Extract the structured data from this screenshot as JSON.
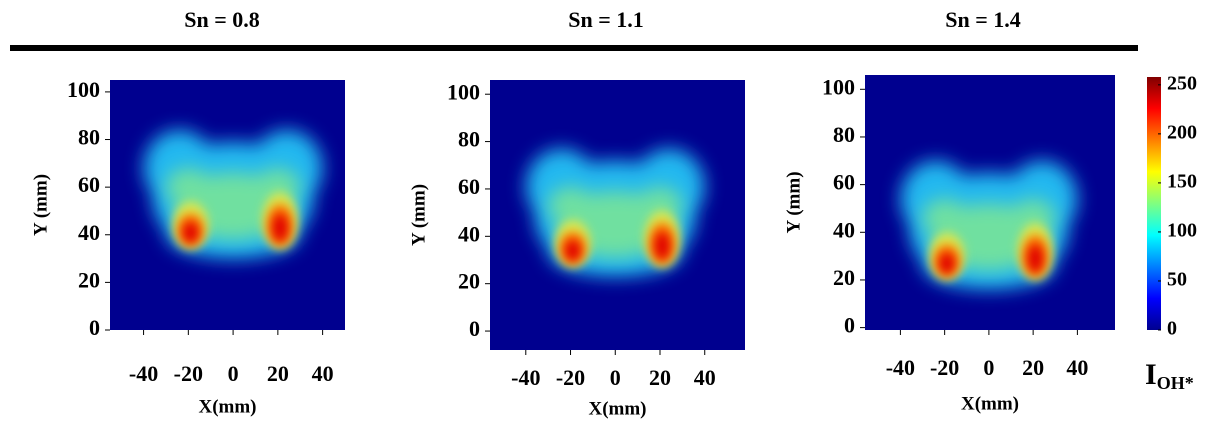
{
  "chart_data": [
    {
      "type": "heatmap",
      "title": "Sn = 0.8",
      "xlabel": "X(mm)",
      "ylabel": "Y (mm)",
      "xlim": [
        -55,
        50
      ],
      "ylim": [
        0,
        105
      ],
      "xticks": [
        -40,
        -20,
        0,
        20,
        40
      ],
      "yticks": [
        0,
        20,
        40,
        60,
        80,
        100
      ]
    },
    {
      "type": "heatmap",
      "title": "Sn = 1.1",
      "xlabel": "X(mm)",
      "ylabel": "Y (mm)",
      "xlim": [
        -56,
        58
      ],
      "ylim": [
        -8,
        106
      ],
      "xticks": [
        -40,
        -20,
        0,
        20,
        40
      ],
      "yticks": [
        0,
        20,
        40,
        60,
        80,
        100
      ]
    },
    {
      "type": "heatmap",
      "title": "Sn = 1.4",
      "xlabel": "X(mm)",
      "ylabel": "Y (mm)",
      "xlim": [
        -56,
        57
      ],
      "ylim": [
        -1,
        106
      ],
      "xticks": [
        -40,
        -20,
        0,
        20,
        40
      ],
      "yticks": [
        0,
        20,
        40,
        60,
        80,
        100
      ]
    },
    {
      "type": "colorbar",
      "label": "I",
      "label_subscript": "OH*",
      "colormap": "jet",
      "ylim": [
        0,
        258
      ],
      "yticks": [
        0,
        50,
        100,
        150,
        200,
        250
      ]
    }
  ]
}
